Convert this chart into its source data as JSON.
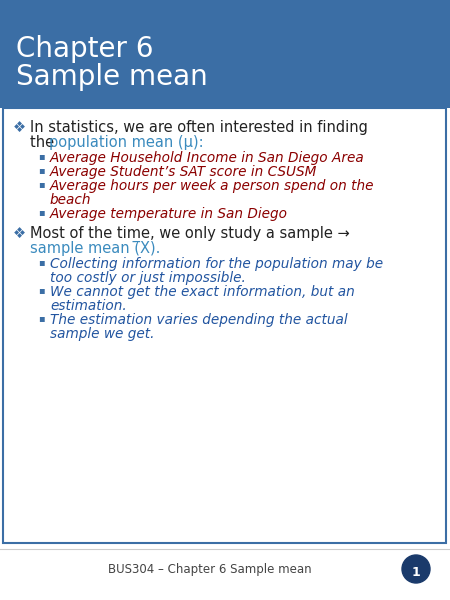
{
  "header_bg_color": "#3B6EA5",
  "header_text_color": "#FFFFFF",
  "header_title_line1": "Chapter 6",
  "header_title_line2": "Sample mean",
  "header_title_fontsize": 20,
  "body_bg_color": "#FFFFFF",
  "border_color": "#3B6EA5",
  "footer_text": "BUS304 – Chapter 6 Sample mean",
  "footer_color": "#444444",
  "main_bullet_color": "#222222",
  "main_bullet_fontsize": 10.5,
  "sub_fontsize": 9.8,
  "sub_bullet_color_1": "#8B0000",
  "sub_bullet_color_2": "#2255A0",
  "highlight_color": "#3B8BBE",
  "badge_color": "#1A3A6B"
}
